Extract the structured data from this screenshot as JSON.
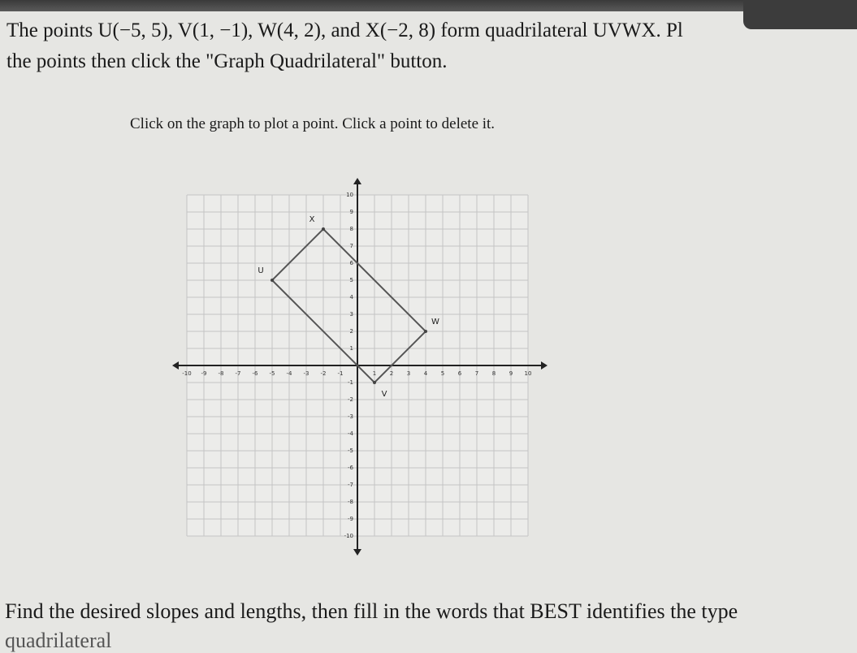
{
  "problem": {
    "line1": "The points U(−5, 5), V(1, −1), W(4, 2), and X(−2, 8) form quadrilateral UVWX. Pl",
    "line2": "the points then click the \"Graph Quadrilateral\" button."
  },
  "instruction": "Click on the graph to plot a point. Click a point to delete it.",
  "graph": {
    "xlim": [
      -10,
      10
    ],
    "ylim": [
      -10,
      10
    ],
    "xticks": [
      -10,
      -9,
      -8,
      -7,
      -6,
      -5,
      -4,
      -3,
      -2,
      -1,
      1,
      2,
      3,
      4,
      5,
      6,
      7,
      8,
      9,
      10
    ],
    "yticks": [
      -10,
      -9,
      -8,
      -7,
      -6,
      -5,
      -4,
      -3,
      -2,
      -1,
      1,
      2,
      3,
      4,
      5,
      6,
      7,
      8,
      9,
      10
    ],
    "points": [
      {
        "label": "U",
        "x": -5,
        "y": 5
      },
      {
        "label": "V",
        "x": 1,
        "y": -1
      },
      {
        "label": "W",
        "x": 4,
        "y": 2
      },
      {
        "label": "X",
        "x": -2,
        "y": 8
      }
    ]
  },
  "footer": {
    "line1": "Find the desired slopes and lengths, then fill in the words that BEST identifies the type",
    "line2": "quadrilateral"
  }
}
